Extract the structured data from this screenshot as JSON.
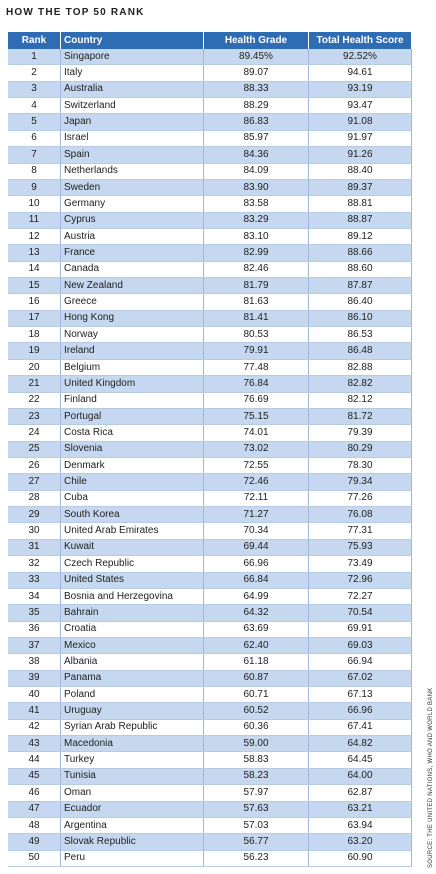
{
  "header": {
    "title": "HOW THE TOP 50 RANK"
  },
  "table": {
    "columns": [
      "Rank",
      "Country",
      "Health Grade",
      "Total Health Score"
    ],
    "rows": [
      [
        "1",
        "Singapore",
        "89.45%",
        "92.52%"
      ],
      [
        "2",
        "Italy",
        "89.07",
        "94.61"
      ],
      [
        "3",
        "Australia",
        "88.33",
        "93.19"
      ],
      [
        "4",
        "Switzerland",
        "88.29",
        "93.47"
      ],
      [
        "5",
        "Japan",
        "86.83",
        "91.08"
      ],
      [
        "6",
        "Israel",
        "85.97",
        "91.97"
      ],
      [
        "7",
        "Spain",
        "84.36",
        "91.26"
      ],
      [
        "8",
        "Netherlands",
        "84.09",
        "88.40"
      ],
      [
        "9",
        "Sweden",
        "83.90",
        "89.37"
      ],
      [
        "10",
        "Germany",
        "83.58",
        "88.81"
      ],
      [
        "11",
        "Cyprus",
        "83.29",
        "88.87"
      ],
      [
        "12",
        "Austria",
        "83.10",
        "89.12"
      ],
      [
        "13",
        "France",
        "82.99",
        "88.66"
      ],
      [
        "14",
        "Canada",
        "82.46",
        "88.60"
      ],
      [
        "15",
        "New Zealand",
        "81.79",
        "87.87"
      ],
      [
        "16",
        "Greece",
        "81.63",
        "86.40"
      ],
      [
        "17",
        "Hong Kong",
        "81.41",
        "86.10"
      ],
      [
        "18",
        "Norway",
        "80.53",
        "86.53"
      ],
      [
        "19",
        "Ireland",
        "79.91",
        "86.48"
      ],
      [
        "20",
        "Belgium",
        "77.48",
        "82.88"
      ],
      [
        "21",
        "United Kingdom",
        "76.84",
        "82.82"
      ],
      [
        "22",
        "Finland",
        "76.69",
        "82.12"
      ],
      [
        "23",
        "Portugal",
        "75.15",
        "81.72"
      ],
      [
        "24",
        "Costa Rica",
        "74.01",
        "79.39"
      ],
      [
        "25",
        "Slovenia",
        "73.02",
        "80.29"
      ],
      [
        "26",
        "Denmark",
        "72.55",
        "78.30"
      ],
      [
        "27",
        "Chile",
        "72.46",
        "79.34"
      ],
      [
        "28",
        "Cuba",
        "72.11",
        "77.26"
      ],
      [
        "29",
        "South Korea",
        "71.27",
        "76.08"
      ],
      [
        "30",
        "United Arab Emirates",
        "70.34",
        "77.31"
      ],
      [
        "31",
        "Kuwait",
        "69.44",
        "75.93"
      ],
      [
        "32",
        "Czech Republic",
        "66.96",
        "73.49"
      ],
      [
        "33",
        "United States",
        "66.84",
        "72.96"
      ],
      [
        "34",
        "Bosnia and Herzegovina",
        "64.99",
        "72.27"
      ],
      [
        "35",
        "Bahrain",
        "64.32",
        "70.54"
      ],
      [
        "36",
        "Croatia",
        "63.69",
        "69.91"
      ],
      [
        "37",
        "Mexico",
        "62.40",
        "69.03"
      ],
      [
        "38",
        "Albania",
        "61.18",
        "66.94"
      ],
      [
        "39",
        "Panama",
        "60.87",
        "67.02"
      ],
      [
        "40",
        "Poland",
        "60.71",
        "67.13"
      ],
      [
        "41",
        "Uruguay",
        "60.52",
        "66.96"
      ],
      [
        "42",
        "Syrian Arab Republic",
        "60.36",
        "67.41"
      ],
      [
        "43",
        "Macedonia",
        "59.00",
        "64.82"
      ],
      [
        "44",
        "Turkey",
        "58.83",
        "64.45"
      ],
      [
        "45",
        "Tunisia",
        "58.23",
        "64.00"
      ],
      [
        "46",
        "Oman",
        "57.97",
        "62.87"
      ],
      [
        "47",
        "Ecuador",
        "57.63",
        "63.21"
      ],
      [
        "48",
        "Argentina",
        "57.03",
        "63.94"
      ],
      [
        "49",
        "Slovak Republic",
        "56.77",
        "63.20"
      ],
      [
        "50",
        "Peru",
        "56.23",
        "60.90"
      ]
    ]
  },
  "source": "SOURCE: THE UNITED NATIONS, WHO AND WORLD BANK"
}
